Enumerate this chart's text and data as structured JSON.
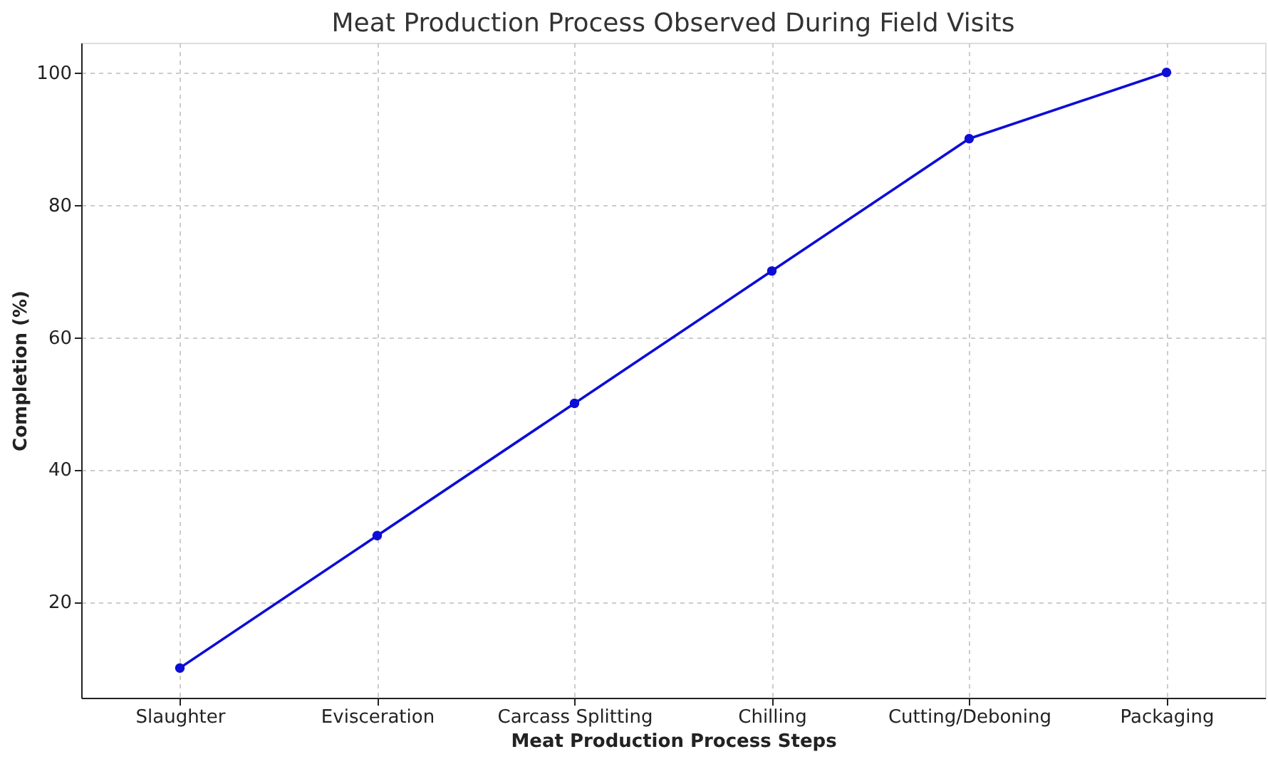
{
  "chart_data": {
    "type": "line",
    "title": "Meat Production Process Observed During Field Visits",
    "xlabel": "Meat Production Process Steps",
    "ylabel": "Completion (%)",
    "categories": [
      "Slaughter",
      "Evisceration",
      "Carcass Splitting",
      "Chilling",
      "Cutting/Deboning",
      "Packaging"
    ],
    "series": [
      {
        "color": "#0d0dd6",
        "values": [
          10,
          30,
          50,
          70,
          90,
          100
        ]
      }
    ],
    "ylim": [
      5.5,
      104.5
    ],
    "yticks": [
      20,
      40,
      60,
      80,
      100
    ],
    "grid": true,
    "marker": "circle",
    "line_style": "solid"
  }
}
